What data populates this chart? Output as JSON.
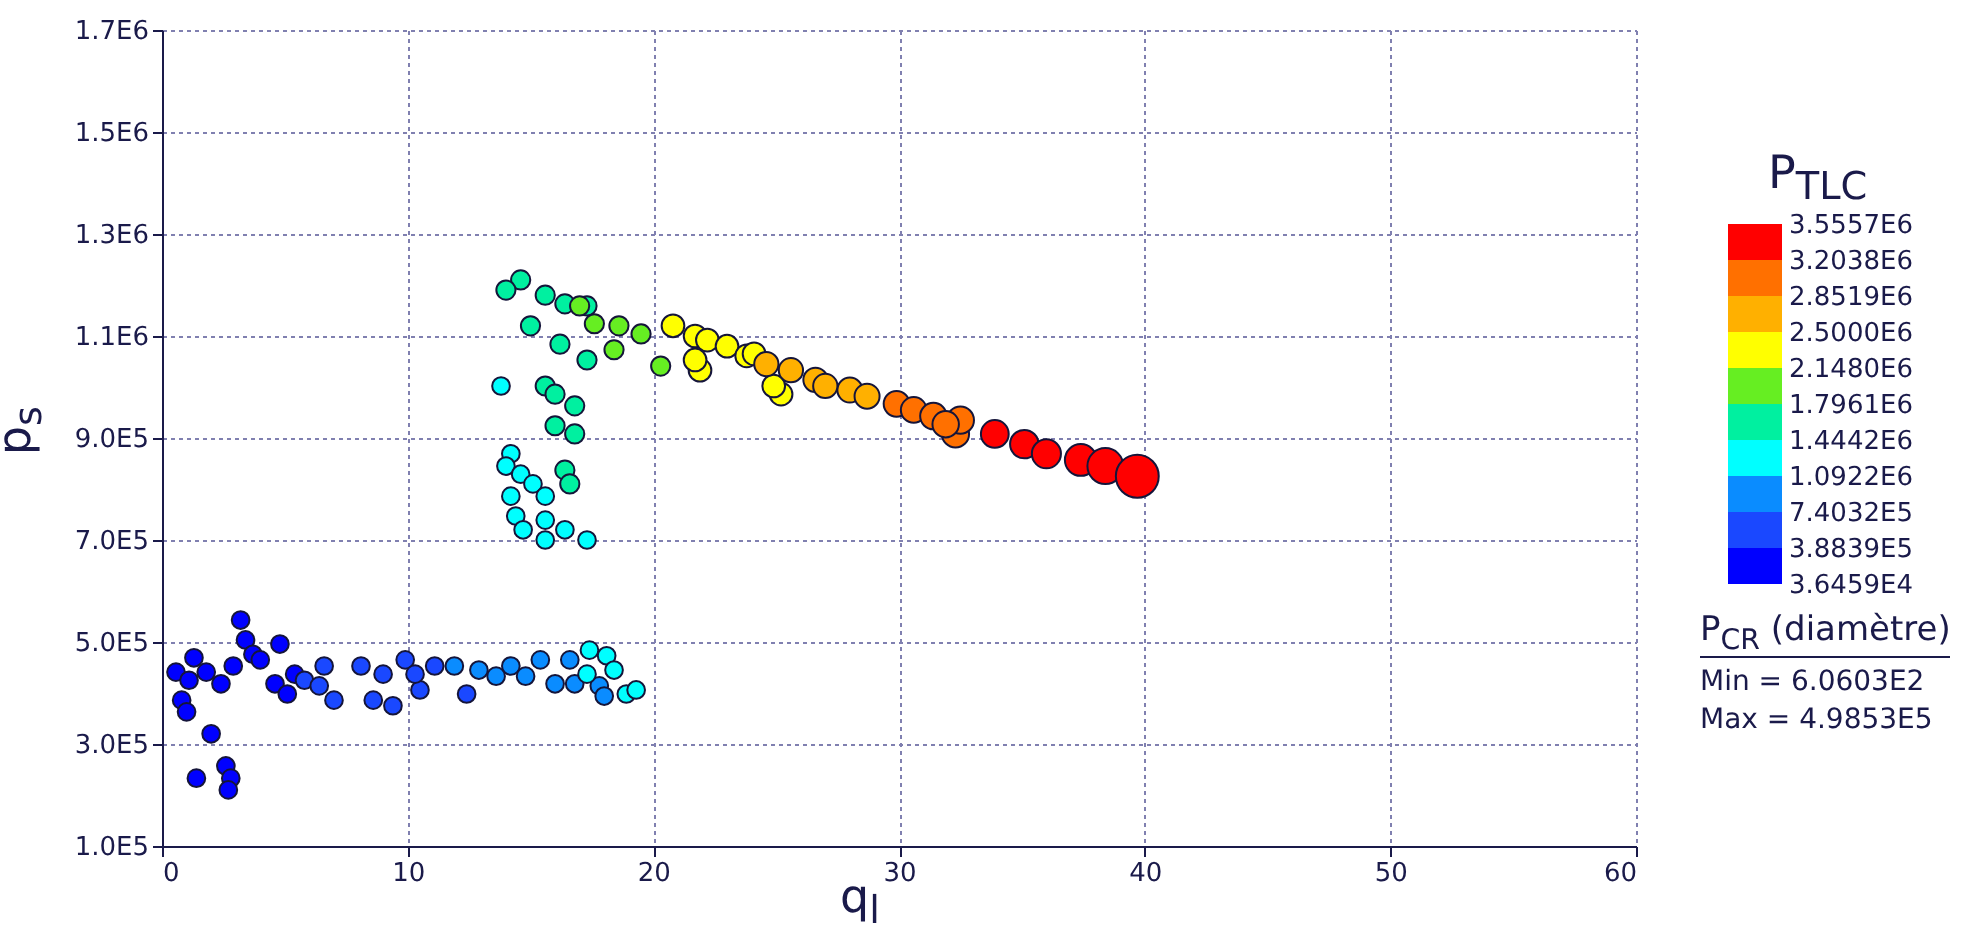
{
  "chart_data": {
    "type": "bubble",
    "xlabel": "q$_{l}$",
    "ylabel": "p$_{s}$",
    "clabel": "P$_{TLC}$",
    "legend_title": "P$_{CR}$ (diamètre)",
    "annotations": [
      "Min = 6.0603E2",
      "Max = 4.9853E5"
    ],
    "xlim": [
      0,
      60
    ],
    "xticks": [
      0,
      10,
      20,
      30,
      40,
      50,
      60
    ],
    "ylim": [
      100000,
      1700000
    ],
    "yticks": [
      {
        "value": 100000,
        "label": "1.0E5"
      },
      {
        "value": 300000,
        "label": "3.0E5"
      },
      {
        "value": 500000,
        "label": "5.0E5"
      },
      {
        "value": 700000,
        "label": "7.0E5"
      },
      {
        "value": 900000,
        "label": "9.0E5"
      },
      {
        "value": 1100000,
        "label": "1.1E6"
      },
      {
        "value": 1300000,
        "label": "1.3E6"
      },
      {
        "value": 1500000,
        "label": "1.5E6"
      },
      {
        "value": 1700000,
        "label": "1.7E6"
      }
    ],
    "clim": [
      36459,
      3555700
    ],
    "cticks": [
      {
        "value": 36459,
        "label": "3.6459E4"
      },
      {
        "value": 388390,
        "label": "3.8839E5"
      },
      {
        "value": 740320,
        "label": "7.4032E5"
      },
      {
        "value": 1092200,
        "label": "1.0922E6"
      },
      {
        "value": 1444200,
        "label": "1.4442E6"
      },
      {
        "value": 1796100,
        "label": "1.7961E6"
      },
      {
        "value": 2148000,
        "label": "2.1480E6"
      },
      {
        "value": 2500000,
        "label": "2.5000E6"
      },
      {
        "value": 2851900,
        "label": "2.8519E6"
      },
      {
        "value": 3203800,
        "label": "3.2038E6"
      },
      {
        "value": 3555700,
        "label": "3.5557E6"
      }
    ],
    "grid": true,
    "series": [
      {
        "color": "#0000ff",
        "x": [
          0.57,
          1.3,
          0.8,
          1.0,
          1.4,
          2.0,
          2.6,
          2.8,
          2.7,
          3.2,
          3.4,
          3.7,
          2.4,
          1.8,
          2.9,
          4.8,
          4.6,
          5.1,
          5.4,
          4.0,
          1.1
        ],
        "values": [
          441000,
          469000,
          386000,
          363000,
          233000,
          320000,
          257000,
          233000,
          210000,
          543000,
          504000,
          476000,
          418000,
          441000,
          453000,
          496000,
          418000,
          398000,
          437000,
          465000,
          425000
        ],
        "sizes": [
          0.17,
          0.17,
          0.17,
          0.17,
          0.17,
          0.17,
          0.17,
          0.17,
          0.17,
          0.17,
          0.17,
          0.17,
          0.17,
          0.17,
          0.17,
          0.17,
          0.17,
          0.17,
          0.17,
          0.17,
          0.17
        ]
      },
      {
        "color": "#1a48ff",
        "x": [
          5.8,
          6.4,
          6.6,
          7.0,
          8.1,
          8.6,
          9.4,
          9.0,
          9.9,
          10.5,
          10.3,
          12.4,
          11.1
        ],
        "values": [
          425000,
          414000,
          453000,
          386000,
          453000,
          386000,
          375000,
          437000,
          465000,
          406000,
          437000,
          398000,
          453000
        ],
        "sizes": [
          0.17,
          0.17,
          0.17,
          0.17,
          0.17,
          0.17,
          0.17,
          0.17,
          0.17,
          0.17,
          0.17,
          0.17,
          0.17
        ]
      },
      {
        "color": "#0a8cff",
        "x": [
          11.9,
          12.9,
          14.2,
          14.8,
          15.4,
          16.0,
          16.8,
          16.6,
          17.8,
          18.0,
          13.6
        ],
        "values": [
          453000,
          445000,
          453000,
          433000,
          465000,
          418000,
          418000,
          465000,
          414000,
          394000,
          433000
        ],
        "sizes": [
          0.17,
          0.17,
          0.17,
          0.17,
          0.17,
          0.17,
          0.17,
          0.17,
          0.17,
          0.17,
          0.17
        ]
      },
      {
        "color": "#00ffff",
        "x": [
          17.4,
          18.1,
          18.4,
          18.9,
          19.3,
          17.3,
          13.8,
          14.2,
          14.0,
          14.6,
          14.2,
          15.1,
          15.6,
          14.4,
          14.7,
          15.6,
          15.6,
          16.4,
          17.3
        ],
        "values": [
          484000,
          473000,
          445000,
          398000,
          406000,
          437000,
          1002000,
          869000,
          845000,
          829000,
          786000,
          810000,
          786000,
          747000,
          720000,
          739000,
          700000,
          720000,
          700000
        ],
        "sizes": [
          0.17,
          0.17,
          0.17,
          0.17,
          0.17,
          0.17,
          0.17,
          0.17,
          0.17,
          0.17,
          0.17,
          0.17,
          0.17,
          0.17,
          0.17,
          0.17,
          0.17,
          0.17,
          0.17
        ]
      },
      {
        "color": "#00f0a0",
        "x": [
          15.6,
          16.0,
          16.8,
          16.0,
          16.8,
          16.4,
          16.6,
          14.6,
          14.0,
          15.6,
          15.0,
          16.2,
          17.3,
          16.4,
          17.3
        ],
        "values": [
          1002000,
          986000,
          963000,
          924000,
          908000,
          837000,
          810000,
          1210000,
          1190000,
          1180000,
          1120000,
          1084000,
          1053000,
          1163000,
          1159000
        ],
        "sizes": [
          0.2,
          0.2,
          0.2,
          0.2,
          0.2,
          0.2,
          0.2,
          0.2,
          0.2,
          0.2,
          0.2,
          0.2,
          0.2,
          0.2,
          0.2
        ]
      },
      {
        "color": "#66ee22",
        "x": [
          18.4,
          20.3,
          17.6,
          18.6,
          19.5,
          17.0
        ],
        "values": [
          1073000,
          1041000,
          1124000,
          1120000,
          1104000,
          1159000
        ],
        "sizes": [
          0.2,
          0.2,
          0.2,
          0.2,
          0.2,
          0.2
        ]
      },
      {
        "color": "#ffff00",
        "x": [
          20.8,
          21.7,
          22.2,
          23.0,
          23.8,
          21.9,
          21.7,
          25.2,
          24.9,
          24.1
        ],
        "values": [
          1120000,
          1100000,
          1092000,
          1080000,
          1061000,
          1033000,
          1053000,
          986000,
          1002000,
          1065000
        ],
        "sizes": [
          0.28,
          0.28,
          0.28,
          0.28,
          0.28,
          0.28,
          0.28,
          0.28,
          0.28,
          0.28
        ]
      },
      {
        "color": "#ffb000",
        "x": [
          24.6,
          25.6,
          26.6,
          28.0,
          28.7,
          27.0
        ],
        "values": [
          1045000,
          1033000,
          1014000,
          994000,
          982000,
          1002000
        ],
        "sizes": [
          0.32,
          0.32,
          0.32,
          0.34,
          0.34,
          0.32
        ]
      },
      {
        "color": "#ff7000",
        "x": [
          29.9,
          30.6,
          31.4,
          32.3,
          32.5,
          31.9
        ],
        "values": [
          967000,
          955000,
          943000,
          908000,
          935000,
          927000
        ],
        "sizes": [
          0.36,
          0.36,
          0.38,
          0.4,
          0.4,
          0.38
        ]
      },
      {
        "color": "#ff0000",
        "x": [
          33.9,
          35.1,
          36.0,
          37.4,
          38.4,
          39.7
        ],
        "values": [
          908000,
          888000,
          869000,
          857000,
          845000,
          825000
        ],
        "sizes": [
          0.42,
          0.44,
          0.46,
          0.55,
          0.7,
          1
        ]
      }
    ]
  }
}
